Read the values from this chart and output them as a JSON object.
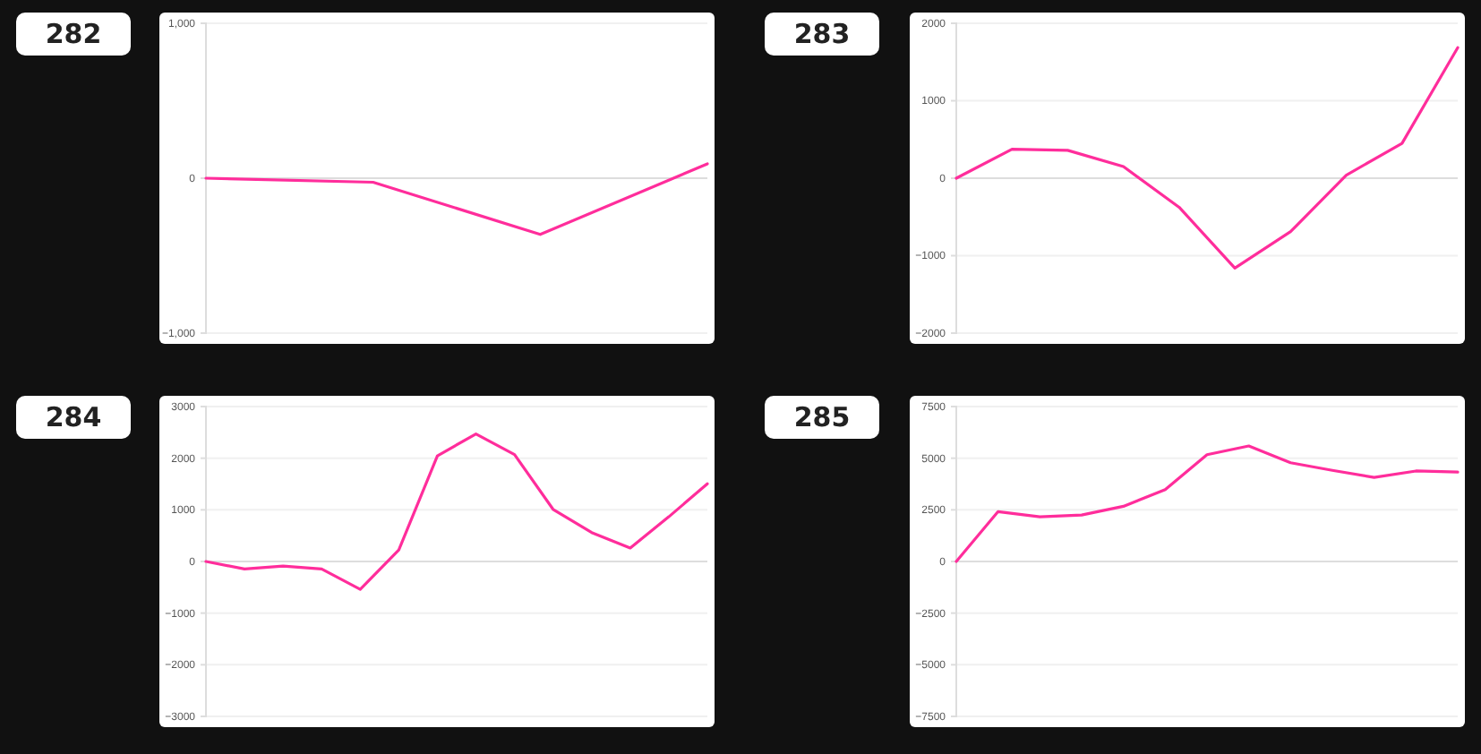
{
  "chart_data": [
    {
      "type": "line",
      "title": "282",
      "categories": [
        null,
        null,
        null,
        null
      ],
      "series": [
        {
          "color": "#ff2d9b",
          "values": [
            0,
            -26,
            -363,
            93
          ]
        }
      ],
      "ylim": [
        -1000,
        1000
      ],
      "yticks": [
        {
          "value": -1000,
          "label": "−1,000"
        },
        0,
        {
          "value": 1000,
          "label": "1,000"
        }
      ],
      "tick_labels": "y",
      "grid": "y"
    },
    {
      "type": "line",
      "title": "283",
      "categories": [
        null,
        null,
        null,
        null,
        null,
        null,
        null,
        null,
        null,
        null
      ],
      "series": [
        {
          "color": "#ff2d9b",
          "values": [
            0,
            375,
            360,
            150,
            -375,
            -1160,
            -690,
            40,
            450,
            1685
          ]
        }
      ],
      "ylim": [
        -2000,
        2000
      ],
      "yticks": [
        -2000,
        -1000,
        0,
        1000,
        2000
      ],
      "tick_labels": "y",
      "grid": "y"
    },
    {
      "type": "line",
      "title": "284",
      "categories": [
        null,
        null,
        null,
        null,
        null,
        null,
        null,
        null,
        null,
        null,
        null,
        null,
        null,
        null
      ],
      "series": [
        {
          "color": "#ff2d9b",
          "values": [
            0,
            -146,
            -90,
            -146,
            -540,
            225,
            2045,
            2470,
            2070,
            1010,
            560,
            260,
            865,
            1505
          ]
        }
      ],
      "ylim": [
        -3000,
        3000
      ],
      "yticks": [
        -3000,
        -2000,
        -1000,
        0,
        1000,
        2000,
        3000
      ],
      "tick_labels": "y",
      "grid": "y"
    },
    {
      "type": "line",
      "title": "285",
      "categories": [
        null,
        null,
        null,
        null,
        null,
        null,
        null,
        null,
        null,
        null,
        null,
        null,
        null
      ],
      "series": [
        {
          "color": "#ff2d9b",
          "values": [
            0,
            2415,
            2160,
            2250,
            2670,
            3480,
            5170,
            5590,
            4780,
            4410,
            4070,
            4380,
            4330
          ]
        }
      ],
      "ylim": [
        -7500,
        7500
      ],
      "yticks": [
        -7500,
        -5000,
        -2500,
        0,
        2500,
        5000,
        7500
      ],
      "tick_labels": "y",
      "grid": "y"
    }
  ]
}
